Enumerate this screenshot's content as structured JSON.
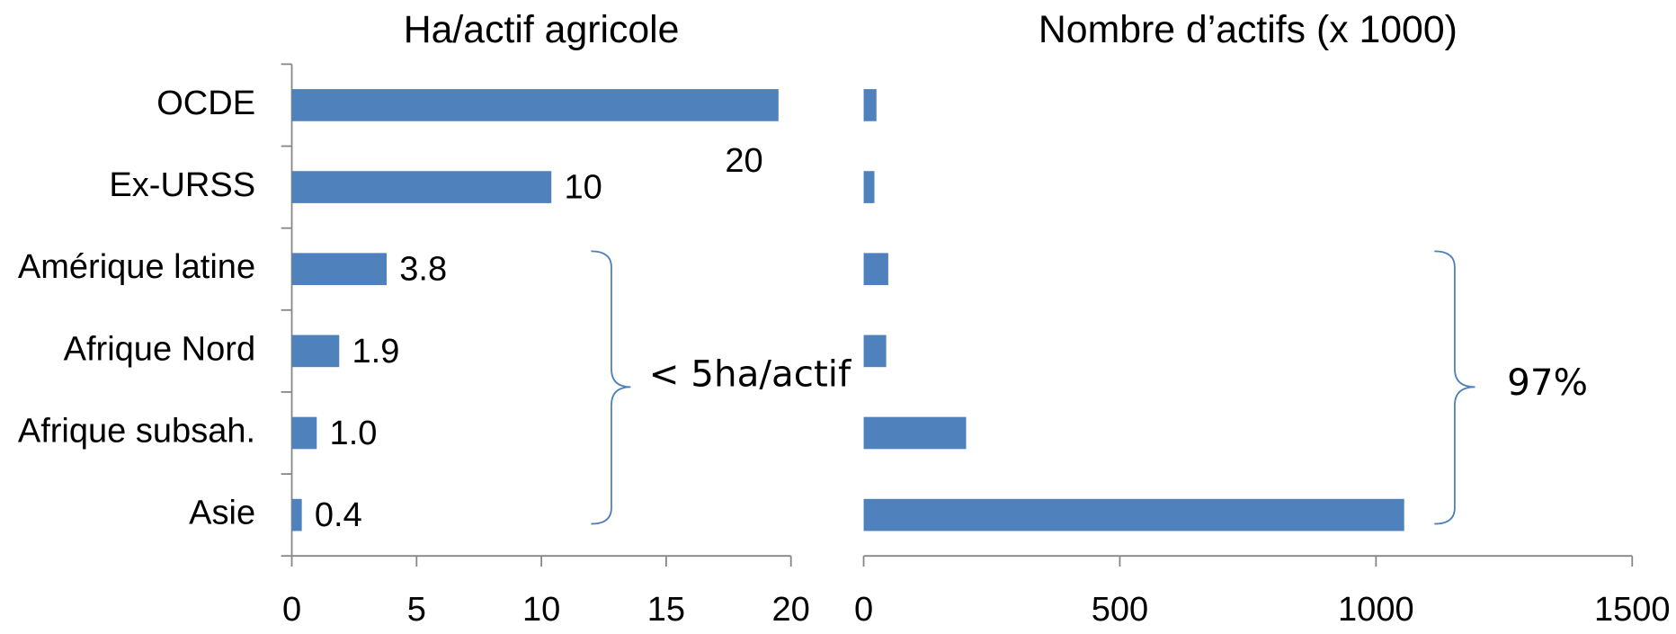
{
  "chart_data": [
    {
      "type": "bar",
      "orientation": "horizontal",
      "title": "Ha/actif agricole",
      "categories": [
        "OCDE",
        "Ex-URSS",
        "Amérique latine",
        "Afrique Nord",
        "Afrique subsah.",
        "Asie"
      ],
      "values": [
        19.5,
        10.4,
        3.8,
        1.9,
        1.0,
        0.4
      ],
      "value_labels": [
        "20",
        "10",
        "3.8",
        "1.9",
        "1.0",
        "0.4"
      ],
      "color": "#4f81bd",
      "xlim": [
        0,
        20
      ],
      "xticks": [
        0,
        5,
        10,
        15,
        20
      ],
      "annotation": "< 5ha/actif"
    },
    {
      "type": "bar",
      "orientation": "horizontal",
      "title": "Nombre d’actifs (x 1000)",
      "values": [
        25,
        21,
        48,
        44,
        200,
        1055
      ],
      "color": "#4f81bd",
      "xlim": [
        0,
        1500
      ],
      "xticks": [
        0,
        500,
        1000,
        1500
      ],
      "annotation": "97%"
    }
  ]
}
